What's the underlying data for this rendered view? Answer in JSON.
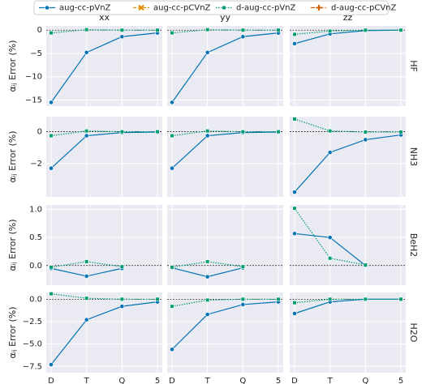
{
  "chart_data": [
    {
      "type": "line",
      "title": "xx",
      "ylabel": "αᵢⱼ Error (%)",
      "categories": [
        "D",
        "T",
        "Q",
        "5"
      ],
      "ylim": [
        -16.3,
        0.9
      ],
      "yticks": [
        {
          "value": -15,
          "label": "−15"
        },
        {
          "value": -10,
          "label": "−10"
        },
        {
          "value": -5,
          "label": "−5"
        },
        0
      ],
      "grid": true,
      "series": [
        {
          "name": "aug-cc-pVnZ",
          "color": "#0173b2",
          "dash": "solid",
          "marker": "circle",
          "values": [
            -15.5,
            -4.8,
            -1.4,
            -0.6
          ]
        },
        {
          "name": "aug-cc-pCVnZ",
          "color": "#de8f05",
          "dash": "dashed",
          "marker": "x",
          "values": [
            null,
            null,
            null,
            null
          ]
        },
        {
          "name": "d-aug-cc-pVnZ",
          "color": "#029e73",
          "dash": "dotted",
          "marker": "square",
          "values": [
            -0.6,
            0.1,
            0.0,
            0.0
          ]
        },
        {
          "name": "d-aug-cc-pCVnZ",
          "color": "#d55e00",
          "dash": "dashdot",
          "marker": "plus",
          "values": [
            null,
            null,
            null,
            null
          ]
        }
      ]
    },
    {
      "type": "line",
      "title": "yy",
      "categories": [
        "D",
        "T",
        "Q",
        "5"
      ],
      "ylim": [
        -16.3,
        0.9
      ],
      "yticks": [
        {
          "value": -15,
          "label": "−15"
        },
        {
          "value": -10,
          "label": "−10"
        },
        {
          "value": -5,
          "label": "−5"
        },
        0
      ],
      "grid": true,
      "series": [
        {
          "name": "aug-cc-pVnZ",
          "color": "#0173b2",
          "dash": "solid",
          "marker": "circle",
          "values": [
            -15.5,
            -4.8,
            -1.4,
            -0.6
          ]
        },
        {
          "name": "aug-cc-pCVnZ",
          "color": "#de8f05",
          "dash": "dashed",
          "marker": "x",
          "values": [
            null,
            null,
            null,
            null
          ]
        },
        {
          "name": "d-aug-cc-pVnZ",
          "color": "#029e73",
          "dash": "dotted",
          "marker": "square",
          "values": [
            -0.6,
            0.1,
            0.0,
            0.0
          ]
        },
        {
          "name": "d-aug-cc-pCVnZ",
          "color": "#d55e00",
          "dash": "dashdot",
          "marker": "plus",
          "values": [
            null,
            null,
            null,
            null
          ]
        }
      ]
    },
    {
      "type": "line",
      "title": "zz",
      "row_label": "HF",
      "categories": [
        "D",
        "T",
        "Q",
        "5"
      ],
      "ylim": [
        -16.3,
        0.9
      ],
      "yticks": [
        {
          "value": -15,
          "label": "−15"
        },
        {
          "value": -10,
          "label": "−10"
        },
        {
          "value": -5,
          "label": "−5"
        },
        0
      ],
      "grid": true,
      "series": [
        {
          "name": "aug-cc-pVnZ",
          "color": "#0173b2",
          "dash": "solid",
          "marker": "circle",
          "values": [
            -2.9,
            -0.8,
            -0.1,
            0.0
          ]
        },
        {
          "name": "aug-cc-pCVnZ",
          "color": "#de8f05",
          "dash": "dashed",
          "marker": "x",
          "values": [
            null,
            null,
            null,
            null
          ]
        },
        {
          "name": "d-aug-cc-pVnZ",
          "color": "#029e73",
          "dash": "dotted",
          "marker": "square",
          "values": [
            -0.9,
            -0.2,
            0.0,
            0.0
          ]
        },
        {
          "name": "d-aug-cc-pCVnZ",
          "color": "#d55e00",
          "dash": "dashdot",
          "marker": "plus",
          "values": [
            null,
            null,
            null,
            null
          ]
        }
      ]
    },
    {
      "type": "line",
      "ylabel": "αᵢⱼ Error (%)",
      "categories": [
        "D",
        "T",
        "Q",
        "5"
      ],
      "ylim": [
        -4.1,
        0.95
      ],
      "yticks": [
        {
          "value": -2,
          "label": "−2"
        },
        0
      ],
      "grid": true,
      "series": [
        {
          "name": "aug-cc-pVnZ",
          "color": "#0173b2",
          "dash": "solid",
          "marker": "circle",
          "values": [
            -2.3,
            -0.25,
            -0.05,
            -0.02
          ]
        },
        {
          "name": "aug-cc-pCVnZ",
          "color": "#de8f05",
          "dash": "dashed",
          "marker": "x",
          "values": [
            null,
            null,
            null,
            null
          ]
        },
        {
          "name": "d-aug-cc-pVnZ",
          "color": "#029e73",
          "dash": "dotted",
          "marker": "square",
          "values": [
            -0.25,
            0.05,
            0.0,
            0.0
          ]
        },
        {
          "name": "d-aug-cc-pCVnZ",
          "color": "#d55e00",
          "dash": "dashdot",
          "marker": "plus",
          "values": [
            null,
            null,
            null,
            null
          ]
        }
      ]
    },
    {
      "type": "line",
      "categories": [
        "D",
        "T",
        "Q",
        "5"
      ],
      "ylim": [
        -4.1,
        0.95
      ],
      "yticks": [
        {
          "value": -2,
          "label": "−2"
        },
        0
      ],
      "grid": true,
      "series": [
        {
          "name": "aug-cc-pVnZ",
          "color": "#0173b2",
          "dash": "solid",
          "marker": "circle",
          "values": [
            -2.3,
            -0.25,
            -0.05,
            -0.02
          ]
        },
        {
          "name": "aug-cc-pCVnZ",
          "color": "#de8f05",
          "dash": "dashed",
          "marker": "x",
          "values": [
            null,
            null,
            null,
            null
          ]
        },
        {
          "name": "d-aug-cc-pVnZ",
          "color": "#029e73",
          "dash": "dotted",
          "marker": "square",
          "values": [
            -0.25,
            0.05,
            0.0,
            0.0
          ]
        },
        {
          "name": "d-aug-cc-pCVnZ",
          "color": "#d55e00",
          "dash": "dashdot",
          "marker": "plus",
          "values": [
            null,
            null,
            null,
            null
          ]
        }
      ]
    },
    {
      "type": "line",
      "row_label": "NH3",
      "categories": [
        "D",
        "T",
        "Q",
        "5"
      ],
      "ylim": [
        -4.1,
        0.95
      ],
      "yticks": [
        {
          "value": -2,
          "label": "−2"
        },
        0
      ],
      "grid": true,
      "series": [
        {
          "name": "aug-cc-pVnZ",
          "color": "#0173b2",
          "dash": "solid",
          "marker": "circle",
          "values": [
            -3.8,
            -1.3,
            -0.5,
            -0.2
          ]
        },
        {
          "name": "aug-cc-pCVnZ",
          "color": "#de8f05",
          "dash": "dashed",
          "marker": "x",
          "values": [
            null,
            null,
            null,
            null
          ]
        },
        {
          "name": "d-aug-cc-pVnZ",
          "color": "#029e73",
          "dash": "dotted",
          "marker": "square",
          "values": [
            0.8,
            0.05,
            -0.02,
            -0.02
          ]
        },
        {
          "name": "d-aug-cc-pCVnZ",
          "color": "#d55e00",
          "dash": "dashdot",
          "marker": "plus",
          "values": [
            null,
            null,
            null,
            null
          ]
        }
      ]
    },
    {
      "type": "line",
      "ylabel": "αᵢⱼ Error (%)",
      "categories": [
        "D",
        "T",
        "Q",
        "5"
      ],
      "ylim": [
        -0.35,
        1.08
      ],
      "yticks": [
        {
          "value": 0,
          "label": "0.0"
        },
        0.5,
        {
          "value": 1,
          "label": "1.0"
        }
      ],
      "grid": true,
      "series": [
        {
          "name": "aug-cc-pVnZ",
          "color": "#0173b2",
          "dash": "solid",
          "marker": "circle",
          "values": [
            -0.05,
            -0.19,
            -0.05,
            null
          ]
        },
        {
          "name": "aug-cc-pCVnZ",
          "color": "#de8f05",
          "dash": "dashed",
          "marker": "x",
          "values": [
            null,
            null,
            null,
            null
          ]
        },
        {
          "name": "d-aug-cc-pVnZ",
          "color": "#029e73",
          "dash": "dotted",
          "marker": "square",
          "values": [
            -0.03,
            0.07,
            -0.02,
            null
          ]
        },
        {
          "name": "d-aug-cc-pCVnZ",
          "color": "#d55e00",
          "dash": "dashdot",
          "marker": "plus",
          "values": [
            null,
            null,
            null,
            null
          ]
        }
      ]
    },
    {
      "type": "line",
      "categories": [
        "D",
        "T",
        "Q",
        "5"
      ],
      "ylim": [
        -0.35,
        1.08
      ],
      "yticks": [
        {
          "value": 0,
          "label": "0.0"
        },
        0.5,
        {
          "value": 1,
          "label": "1.0"
        }
      ],
      "grid": true,
      "series": [
        {
          "name": "aug-cc-pVnZ",
          "color": "#0173b2",
          "dash": "solid",
          "marker": "circle",
          "values": [
            -0.04,
            -0.2,
            -0.04,
            null
          ]
        },
        {
          "name": "aug-cc-pCVnZ",
          "color": "#de8f05",
          "dash": "dashed",
          "marker": "x",
          "values": [
            null,
            null,
            null,
            null
          ]
        },
        {
          "name": "d-aug-cc-pVnZ",
          "color": "#029e73",
          "dash": "dotted",
          "marker": "square",
          "values": [
            -0.03,
            0.07,
            -0.02,
            null
          ]
        },
        {
          "name": "d-aug-cc-pCVnZ",
          "color": "#d55e00",
          "dash": "dashdot",
          "marker": "plus",
          "values": [
            null,
            null,
            null,
            null
          ]
        }
      ]
    },
    {
      "type": "line",
      "row_label": "BeH2",
      "categories": [
        "D",
        "T",
        "Q",
        "5"
      ],
      "ylim": [
        -0.35,
        1.08
      ],
      "yticks": [
        {
          "value": 0,
          "label": "0.0"
        },
        0.5,
        {
          "value": 1,
          "label": "1.0"
        }
      ],
      "grid": true,
      "series": [
        {
          "name": "aug-cc-pVnZ",
          "color": "#0173b2",
          "dash": "solid",
          "marker": "circle",
          "values": [
            0.57,
            0.5,
            0.0,
            null
          ]
        },
        {
          "name": "aug-cc-pCVnZ",
          "color": "#de8f05",
          "dash": "dashed",
          "marker": "x",
          "values": [
            null,
            null,
            null,
            null
          ]
        },
        {
          "name": "d-aug-cc-pVnZ",
          "color": "#029e73",
          "dash": "dotted",
          "marker": "square",
          "values": [
            1.02,
            0.13,
            0.01,
            null
          ]
        },
        {
          "name": "d-aug-cc-pCVnZ",
          "color": "#d55e00",
          "dash": "dashdot",
          "marker": "plus",
          "values": [
            null,
            null,
            null,
            null
          ]
        }
      ]
    },
    {
      "type": "line",
      "ylabel": "αᵢⱼ Error (%)",
      "categories": [
        "D",
        "T",
        "Q",
        "5"
      ],
      "ylim": [
        -8.2,
        0.75
      ],
      "yticks": [
        {
          "value": -7.5,
          "label": "−7.5"
        },
        {
          "value": -5,
          "label": "−5.0"
        },
        {
          "value": -2.5,
          "label": "−2.5"
        },
        {
          "value": 0,
          "label": "0.0"
        }
      ],
      "grid": true,
      "series": [
        {
          "name": "aug-cc-pVnZ",
          "color": "#0173b2",
          "dash": "solid",
          "marker": "circle",
          "values": [
            -7.3,
            -2.3,
            -0.8,
            -0.3
          ]
        },
        {
          "name": "aug-cc-pCVnZ",
          "color": "#de8f05",
          "dash": "dashed",
          "marker": "x",
          "values": [
            null,
            null,
            null,
            null
          ]
        },
        {
          "name": "d-aug-cc-pVnZ",
          "color": "#029e73",
          "dash": "dotted",
          "marker": "square",
          "values": [
            0.6,
            0.1,
            0.0,
            0.0
          ]
        },
        {
          "name": "d-aug-cc-pCVnZ",
          "color": "#d55e00",
          "dash": "dashdot",
          "marker": "plus",
          "values": [
            null,
            null,
            null,
            null
          ]
        }
      ]
    },
    {
      "type": "line",
      "categories": [
        "D",
        "T",
        "Q",
        "5"
      ],
      "ylim": [
        -8.2,
        0.75
      ],
      "yticks": [
        {
          "value": -7.5,
          "label": "−7.5"
        },
        {
          "value": -5,
          "label": "−5.0"
        },
        {
          "value": -2.5,
          "label": "−2.5"
        },
        {
          "value": 0,
          "label": "0.0"
        }
      ],
      "grid": true,
      "series": [
        {
          "name": "aug-cc-pVnZ",
          "color": "#0173b2",
          "dash": "solid",
          "marker": "circle",
          "values": [
            -5.6,
            -1.7,
            -0.6,
            -0.3
          ]
        },
        {
          "name": "aug-cc-pCVnZ",
          "color": "#de8f05",
          "dash": "dashed",
          "marker": "x",
          "values": [
            null,
            null,
            null,
            null
          ]
        },
        {
          "name": "d-aug-cc-pVnZ",
          "color": "#029e73",
          "dash": "dotted",
          "marker": "square",
          "values": [
            -0.8,
            -0.1,
            0.0,
            0.0
          ]
        },
        {
          "name": "d-aug-cc-pCVnZ",
          "color": "#d55e00",
          "dash": "dashdot",
          "marker": "plus",
          "values": [
            null,
            null,
            null,
            null
          ]
        }
      ]
    },
    {
      "type": "line",
      "row_label": "H2O",
      "categories": [
        "D",
        "T",
        "Q",
        "5"
      ],
      "ylim": [
        -8.2,
        0.75
      ],
      "yticks": [
        {
          "value": -7.5,
          "label": "−7.5"
        },
        {
          "value": -5,
          "label": "−5.0"
        },
        {
          "value": -2.5,
          "label": "−2.5"
        },
        {
          "value": 0,
          "label": "0.0"
        }
      ],
      "grid": true,
      "series": [
        {
          "name": "aug-cc-pVnZ",
          "color": "#0173b2",
          "dash": "solid",
          "marker": "circle",
          "values": [
            -1.6,
            -0.3,
            0.0,
            0.0
          ]
        },
        {
          "name": "aug-cc-pCVnZ",
          "color": "#de8f05",
          "dash": "dashed",
          "marker": "x",
          "values": [
            null,
            null,
            null,
            null
          ]
        },
        {
          "name": "d-aug-cc-pVnZ",
          "color": "#029e73",
          "dash": "dotted",
          "marker": "square",
          "values": [
            -0.4,
            0.0,
            0.0,
            0.0
          ]
        },
        {
          "name": "d-aug-cc-pCVnZ",
          "color": "#d55e00",
          "dash": "dashdot",
          "marker": "plus",
          "values": [
            null,
            null,
            null,
            null
          ]
        }
      ]
    }
  ]
}
